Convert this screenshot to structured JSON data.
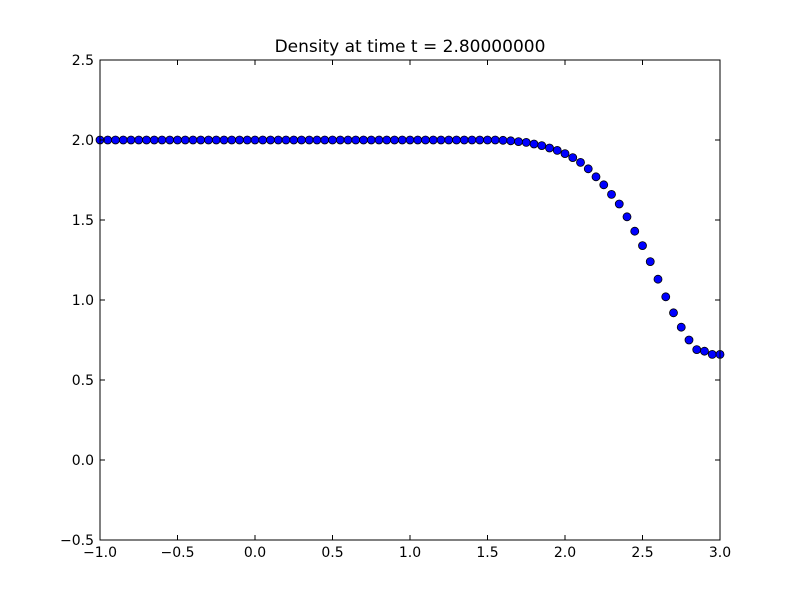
{
  "chart_data": {
    "type": "scatter",
    "title": "Density at time t =     2.80000000",
    "xlabel": "",
    "ylabel": "",
    "xlim": [
      -1.0,
      3.0
    ],
    "ylim": [
      -0.5,
      2.5
    ],
    "xticks": [
      -1.0,
      -0.5,
      0.0,
      0.5,
      1.0,
      1.5,
      2.0,
      2.5,
      3.0
    ],
    "xtick_labels": [
      "−1.0",
      "−0.5",
      "0.0",
      "0.5",
      "1.0",
      "1.5",
      "2.0",
      "2.5",
      "3.0"
    ],
    "yticks": [
      -0.5,
      0.0,
      0.5,
      1.0,
      1.5,
      2.0,
      2.5
    ],
    "ytick_labels": [
      "−0.5",
      "0.0",
      "0.5",
      "1.0",
      "1.5",
      "2.0",
      "2.5"
    ],
    "grid": false,
    "marker": "circle",
    "marker_color": "#0000ff",
    "series": [
      {
        "x": [
          -1.0,
          -0.95,
          -0.9,
          -0.85,
          -0.8,
          -0.75,
          -0.7,
          -0.65,
          -0.6,
          -0.55,
          -0.5,
          -0.45,
          -0.4,
          -0.35,
          -0.3,
          -0.25,
          -0.2,
          -0.15,
          -0.1,
          -0.05,
          0.0,
          0.05,
          0.1,
          0.15,
          0.2,
          0.25,
          0.3,
          0.35,
          0.4,
          0.45,
          0.5,
          0.55,
          0.6,
          0.65,
          0.7,
          0.75,
          0.8,
          0.85,
          0.9,
          0.95,
          1.0,
          1.05,
          1.1,
          1.15,
          1.2,
          1.25,
          1.3,
          1.35,
          1.4,
          1.45,
          1.5,
          1.55,
          1.6,
          1.65,
          1.7,
          1.75,
          1.8,
          1.85,
          1.9,
          1.95,
          2.0,
          2.05,
          2.1,
          2.15,
          2.2,
          2.25,
          2.3,
          2.35,
          2.4,
          2.45,
          2.5,
          2.55,
          2.6,
          2.65,
          2.7,
          2.75,
          2.8,
          2.85,
          2.9,
          2.95,
          3.0
        ],
        "y": [
          2.0,
          2.0,
          2.0,
          2.0,
          2.0,
          2.0,
          2.0,
          2.0,
          2.0,
          2.0,
          2.0,
          2.0,
          2.0,
          2.0,
          2.0,
          2.0,
          2.0,
          2.0,
          2.0,
          2.0,
          2.0,
          2.0,
          2.0,
          2.0,
          2.0,
          2.0,
          2.0,
          2.0,
          2.0,
          2.0,
          2.0,
          2.0,
          2.0,
          2.0,
          2.0,
          2.0,
          2.0,
          2.0,
          2.0,
          2.0,
          2.0,
          2.0,
          2.0,
          2.0,
          2.0,
          2.0,
          2.0,
          2.0,
          2.0,
          2.0,
          2.0,
          2.0,
          1.998,
          1.995,
          1.99,
          1.985,
          1.975,
          1.965,
          1.95,
          1.935,
          1.915,
          1.89,
          1.86,
          1.82,
          1.77,
          1.72,
          1.66,
          1.6,
          1.52,
          1.43,
          1.34,
          1.24,
          1.13,
          1.02,
          0.92,
          0.83,
          0.75,
          0.69,
          0.68,
          0.66,
          0.66
        ]
      }
    ]
  }
}
